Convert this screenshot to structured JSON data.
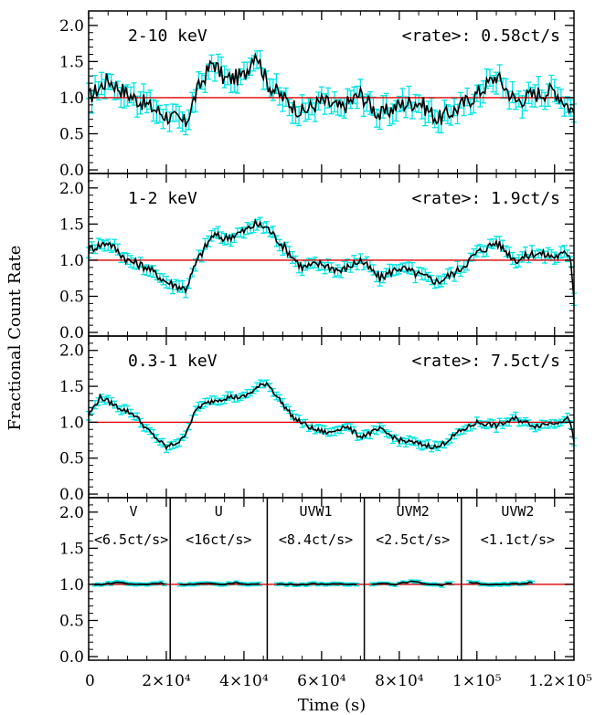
{
  "chart_data": {
    "type": "line",
    "xlabel": "Time (s)",
    "ylabel": "Fractional Count Rate",
    "xlim": [
      0,
      125000
    ],
    "ylim": [
      -0.05,
      2.2
    ],
    "x_ticks": [
      {
        "value": 0,
        "label": "0"
      },
      {
        "value": 20000,
        "label": "2×10⁴"
      },
      {
        "value": 40000,
        "label": "4×10⁴"
      },
      {
        "value": 60000,
        "label": "6×10⁴"
      },
      {
        "value": 80000,
        "label": "8×10⁴"
      },
      {
        "value": 100000,
        "label": "1×10⁵"
      },
      {
        "value": 120000,
        "label": "1.2×10⁵"
      }
    ],
    "y_ticks": [
      {
        "value": 0.0,
        "label": "0.0"
      },
      {
        "value": 0.5,
        "label": "0.5"
      },
      {
        "value": 1.0,
        "label": "1.0"
      },
      {
        "value": 1.5,
        "label": "1.5"
      },
      {
        "value": 2.0,
        "label": "2.0"
      }
    ],
    "reference_line": 1.0,
    "colors": {
      "line": "#000000",
      "errorbar": "#00e5e5",
      "reference": "#e00000",
      "axes": "#000000"
    },
    "panels": [
      {
        "band": "2-10 keV",
        "rate_label": "<rate>: 0.58ct/s",
        "x": [
          0,
          5000,
          10000,
          15000,
          20000,
          25000,
          28000,
          32000,
          35000,
          40000,
          43000,
          46000,
          50000,
          55000,
          60000,
          65000,
          70000,
          75000,
          80000,
          85000,
          90000,
          95000,
          100000,
          105000,
          110000,
          115000,
          120000,
          125000
        ],
        "y": [
          1.0,
          1.25,
          1.05,
          0.9,
          0.75,
          0.65,
          1.1,
          1.5,
          1.25,
          1.3,
          1.65,
          1.2,
          1.0,
          0.8,
          0.95,
          0.85,
          1.05,
          0.75,
          0.9,
          0.95,
          0.7,
          0.85,
          1.05,
          1.3,
          0.95,
          1.05,
          1.1,
          0.8
        ],
        "err": 0.13
      },
      {
        "band": "1-2 keV",
        "rate_label": "<rate>: 1.9ct/s",
        "x": [
          0,
          5000,
          10000,
          15000,
          20000,
          25000,
          28000,
          32000,
          35000,
          40000,
          43000,
          46000,
          50000,
          55000,
          60000,
          65000,
          70000,
          75000,
          80000,
          85000,
          90000,
          95000,
          100000,
          105000,
          110000,
          115000,
          120000,
          124000,
          125000
        ],
        "y": [
          1.15,
          1.25,
          1.0,
          0.9,
          0.7,
          0.6,
          1.0,
          1.35,
          1.3,
          1.4,
          1.5,
          1.45,
          1.2,
          0.9,
          0.95,
          0.85,
          1.0,
          0.75,
          0.9,
          0.8,
          0.7,
          0.85,
          1.1,
          1.25,
          1.0,
          1.1,
          1.05,
          1.1,
          0.5
        ],
        "err": 0.07
      },
      {
        "band": "0.3-1 keV",
        "rate_label": "<rate>: 7.5ct/s",
        "x": [
          0,
          3000,
          8000,
          12000,
          15000,
          20000,
          24000,
          28000,
          32000,
          36000,
          40000,
          44000,
          46000,
          50000,
          53000,
          58000,
          62000,
          66000,
          70000,
          75000,
          80000,
          85000,
          90000,
          95000,
          100000,
          105000,
          110000,
          115000,
          120000,
          124000,
          125000
        ],
        "y": [
          1.1,
          1.35,
          1.2,
          1.1,
          0.9,
          0.65,
          0.75,
          1.2,
          1.3,
          1.35,
          1.35,
          1.5,
          1.55,
          1.25,
          1.05,
          0.9,
          0.85,
          0.95,
          0.8,
          0.9,
          0.75,
          0.7,
          0.65,
          0.85,
          1.0,
          0.95,
          1.05,
          0.95,
          1.0,
          1.05,
          0.7
        ],
        "err": 0.05
      },
      {
        "band": "",
        "rate_label": "",
        "x": [
          1500,
          5000,
          8000,
          11000,
          15000,
          18000,
          21000,
          26000,
          30000,
          34000,
          38000,
          42000,
          46000,
          51000,
          55000,
          59000,
          63000,
          67000,
          71000,
          75000,
          79000,
          83000,
          87000,
          91000,
          96000,
          100000,
          104000,
          108000,
          112000,
          115000
        ],
        "y": [
          0.99,
          1.01,
          1.03,
          1.0,
          1.0,
          1.02,
          1.0,
          1.0,
          1.01,
          1.0,
          1.02,
          1.0,
          1.01,
          1.0,
          1.0,
          1.01,
          1.0,
          1.0,
          1.0,
          1.02,
          1.0,
          1.04,
          1.01,
          0.99,
          1.05,
          1.02,
          0.99,
          1.0,
          1.01,
          1.04
        ],
        "err": 0.02,
        "segments": [
          {
            "filter": "V",
            "rate": "<6.5ct/s>",
            "x_end": 21000
          },
          {
            "filter": "U",
            "rate": "<16ct/s>",
            "x_end": 46000
          },
          {
            "filter": "UVW1",
            "rate": "<8.4ct/s>",
            "x_end": 71000
          },
          {
            "filter": "UVM2",
            "rate": "<2.5ct/s>",
            "x_end": 96000
          },
          {
            "filter": "UVW2",
            "rate": "<1.1ct/s>",
            "x_end": 125000
          }
        ]
      }
    ]
  }
}
